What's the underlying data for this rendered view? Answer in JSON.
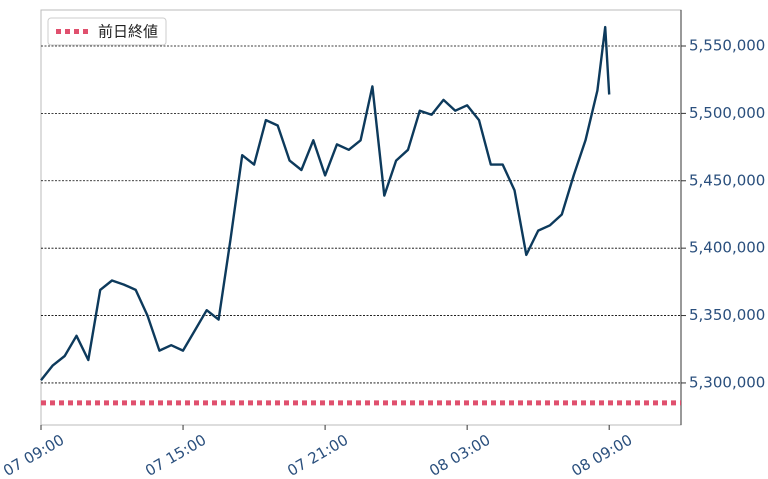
{
  "chart_data": {
    "type": "line",
    "x": [
      "07 09:00",
      "07 09:30",
      "07 10:00",
      "07 10:30",
      "07 11:00",
      "07 11:30",
      "07 12:00",
      "07 12:30",
      "07 13:00",
      "07 13:30",
      "07 14:00",
      "07 14:30",
      "07 15:00",
      "07 15:30",
      "07 16:00",
      "07 16:30",
      "07 17:00",
      "07 17:30",
      "07 18:00",
      "07 18:30",
      "07 19:00",
      "07 19:30",
      "07 20:00",
      "07 20:30",
      "07 21:00",
      "07 21:30",
      "07 22:00",
      "07 22:30",
      "07 23:00",
      "07 23:30",
      "08 00:00",
      "08 00:30",
      "08 01:00",
      "08 01:30",
      "08 02:00",
      "08 02:30",
      "08 03:00",
      "08 03:30",
      "08 04:00",
      "08 04:30",
      "08 05:00",
      "08 05:30",
      "08 06:00",
      "08 06:30",
      "08 07:00",
      "08 07:30",
      "08 08:00",
      "08 08:30",
      "08 08:50",
      "08 09:00"
    ],
    "series": [
      {
        "color": "#0d3a5c",
        "values": [
          5302000,
          5313000,
          5320000,
          5335000,
          5317000,
          5369000,
          5376000,
          5373000,
          5369000,
          5350000,
          5324000,
          5328000,
          5324000,
          5339000,
          5354000,
          5347000,
          5406000,
          5469000,
          5462000,
          5495000,
          5491000,
          5465000,
          5458000,
          5480000,
          5454000,
          5477000,
          5473000,
          5480000,
          5520000,
          5439000,
          5465000,
          5473000,
          5502000,
          5499000,
          5510000,
          5502000,
          5506000,
          5495000,
          5462000,
          5462000,
          5443000,
          5395000,
          5413000,
          5417000,
          5425000,
          5454000,
          5480000,
          5517000,
          5564000,
          5514000
        ]
      }
    ],
    "reference_lines": [
      {
        "name": "前日終値",
        "value": 5285200,
        "color": "#e0506e"
      }
    ],
    "xlim": [
      "07 09:00",
      "08 12:02"
    ],
    "xticks": [
      "07 09:00",
      "07 15:00",
      "07 21:00",
      "08 03:00",
      "08 09:00"
    ],
    "ylim": [
      5268800,
      5576700
    ],
    "yticks": [
      {
        "value": 5300000,
        "label": "5,300,000"
      },
      {
        "value": 5350000,
        "label": "5,350,000"
      },
      {
        "value": 5400000,
        "label": "5,400,000"
      },
      {
        "value": 5450000,
        "label": "5,450,000"
      },
      {
        "value": 5500000,
        "label": "5,500,000"
      },
      {
        "value": 5550000,
        "label": "5,550,000"
      }
    ],
    "grid": true,
    "legend": "upper left"
  }
}
